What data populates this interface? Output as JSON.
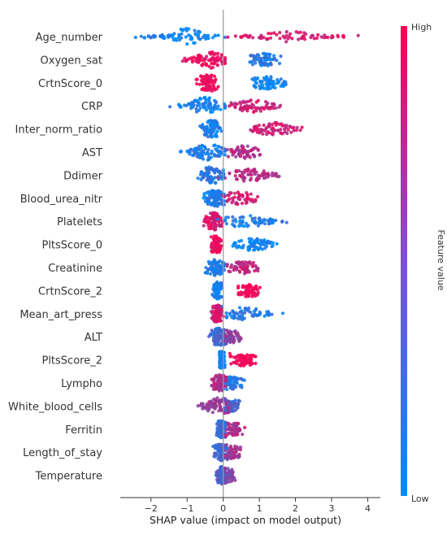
{
  "chart_data": {
    "type": "scatter",
    "subtype": "shap-beeswarm",
    "title": "",
    "xlabel": "SHAP value (impact on model output)",
    "ylabel": "",
    "xlim": [
      -2.85,
      4.35
    ],
    "xticks": [
      -2,
      -1,
      0,
      1,
      2,
      3,
      4
    ],
    "zero_line": true,
    "colorbar": {
      "label": "Feature value",
      "high": "High",
      "low": "Low",
      "high_color": "#ff0052",
      "low_color": "#008bfb"
    },
    "features": [
      {
        "name": "Age_number",
        "min": -2.5,
        "max": 4.1,
        "neg_mode": -1.0,
        "pos_mode": 1.8,
        "neg_color": 0.05,
        "pos_color": 0.85
      },
      {
        "name": "Oxygen_sat",
        "min": -1.15,
        "max": 1.6,
        "neg_mode": -0.35,
        "pos_mode": 1.1,
        "neg_color": 0.92,
        "pos_color": 0.15
      },
      {
        "name": "CrtnScore_0",
        "min": -0.75,
        "max": 1.75,
        "neg_mode": -0.4,
        "pos_mode": 1.2,
        "neg_color": 0.95,
        "pos_color": 0.02
      },
      {
        "name": "CRP",
        "min": -1.5,
        "max": 1.6,
        "neg_mode": -0.5,
        "pos_mode": 0.8,
        "neg_color": 0.08,
        "pos_color": 0.8
      },
      {
        "name": "Inter_norm_ratio",
        "min": -0.65,
        "max": 2.25,
        "neg_mode": -0.3,
        "pos_mode": 1.4,
        "neg_color": 0.1,
        "pos_color": 0.8
      },
      {
        "name": "AST",
        "min": -1.3,
        "max": 1.05,
        "neg_mode": -0.4,
        "pos_mode": 0.5,
        "neg_color": 0.12,
        "pos_color": 0.7
      },
      {
        "name": "Ddimer",
        "min": -0.7,
        "max": 1.75,
        "neg_mode": -0.3,
        "pos_mode": 0.7,
        "neg_color": 0.15,
        "pos_color": 0.72
      },
      {
        "name": "Blood_urea_nitr",
        "min": -0.55,
        "max": 1.0,
        "neg_mode": -0.2,
        "pos_mode": 0.4,
        "neg_color": 0.1,
        "pos_color": 0.82
      },
      {
        "name": "Platelets",
        "min": -0.55,
        "max": 1.85,
        "neg_mode": -0.25,
        "pos_mode": 0.6,
        "neg_color": 0.85,
        "pos_color": 0.1
      },
      {
        "name": "PltsScore_0",
        "min": -0.35,
        "max": 1.5,
        "neg_mode": -0.18,
        "pos_mode": 0.8,
        "neg_color": 0.97,
        "pos_color": 0.03
      },
      {
        "name": "Creatinine",
        "min": -0.5,
        "max": 1.0,
        "neg_mode": -0.2,
        "pos_mode": 0.5,
        "neg_color": 0.12,
        "pos_color": 0.75
      },
      {
        "name": "CrtnScore_2",
        "min": -0.3,
        "max": 1.05,
        "neg_mode": -0.15,
        "pos_mode": 0.7,
        "neg_color": 0.05,
        "pos_color": 0.97
      },
      {
        "name": "Mean_art_press",
        "min": -0.35,
        "max": 1.9,
        "neg_mode": -0.15,
        "pos_mode": 0.6,
        "neg_color": 0.85,
        "pos_color": 0.15
      },
      {
        "name": "ALT",
        "min": -0.4,
        "max": 0.5,
        "neg_mode": -0.1,
        "pos_mode": 0.15,
        "neg_color": 0.25,
        "pos_color": 0.55
      },
      {
        "name": "PltsScore_2",
        "min": -0.1,
        "max": 0.9,
        "neg_mode": -0.05,
        "pos_mode": 0.5,
        "neg_color": 0.05,
        "pos_color": 0.97
      },
      {
        "name": "Lympho",
        "min": -0.35,
        "max": 0.6,
        "neg_mode": -0.1,
        "pos_mode": 0.2,
        "neg_color": 0.7,
        "pos_color": 0.15
      },
      {
        "name": "White_blood_cells",
        "min": -0.75,
        "max": 0.5,
        "neg_mode": -0.1,
        "pos_mode": 0.2,
        "neg_color": 0.6,
        "pos_color": 0.25
      },
      {
        "name": "Ferritin",
        "min": -0.2,
        "max": 0.6,
        "neg_mode": -0.05,
        "pos_mode": 0.25,
        "neg_color": 0.2,
        "pos_color": 0.7
      },
      {
        "name": "Length_of_stay",
        "min": -0.3,
        "max": 0.5,
        "neg_mode": -0.05,
        "pos_mode": 0.2,
        "neg_color": 0.25,
        "pos_color": 0.65
      },
      {
        "name": "Temperature",
        "min": -0.2,
        "max": 0.35,
        "neg_mode": -0.05,
        "pos_mode": 0.1,
        "neg_color": 0.3,
        "pos_color": 0.5
      }
    ]
  }
}
